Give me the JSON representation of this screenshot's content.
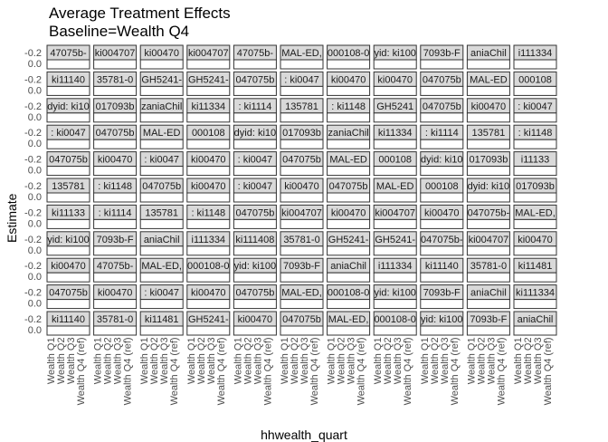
{
  "chart_data": {
    "type": "bar",
    "title_line1": "Average Treatment Effects",
    "title_line2": "Baseline=Wealth Q4",
    "xlabel": "hhwealth_quart",
    "ylabel": "Estimate",
    "categories": [
      "Wealth Q1",
      "Wealth Q2",
      "Wealth Q3",
      "Wealth Q4 (ref)"
    ],
    "y_tick_labels": [
      "-0.2",
      "0.0"
    ],
    "ylim": [
      -0.2,
      0.0
    ],
    "grid_rows": 11,
    "grid_cols": 12,
    "strip_labels": [
      [
        "47075b-",
        "ki004707",
        "ki00470",
        "ki004707",
        "47075b-",
        "MAL-ED,",
        "000108-0",
        "yid: ki100",
        "7093b-F",
        "aniaChil",
        "i111334"
      ],
      [
        "ki11140",
        "35781-0",
        "GH5241-",
        "GH5241-",
        "047075b",
        ": ki0047",
        "ki00470",
        "ki00470",
        "047075b",
        "MAL-ED",
        "000108"
      ],
      [
        "dyid: ki10",
        "017093b",
        "zaniaChil",
        "ki11334",
        ": ki1114",
        "135781",
        ": ki1148",
        "GH5241",
        "047075b",
        "ki00470",
        ": ki0047"
      ],
      [
        ": ki0047",
        "047075b",
        "MAL-ED",
        "000108",
        "dyid: ki10",
        "017093b",
        "zaniaChil",
        "ki11334",
        ": ki1114",
        "135781",
        ": ki1148"
      ],
      [
        "047075b",
        "ki00470",
        ": ki0047",
        "ki00470",
        ": ki0047",
        "047075b",
        "MAL-ED",
        "000108",
        "dyid: ki10",
        "017093b",
        "i11133"
      ],
      [
        "135781",
        ": ki1148",
        "047075b",
        "ki00470",
        ": ki0047",
        "ki00470",
        "047075b",
        "MAL-ED",
        "000108",
        "dyid: ki10",
        "017093b"
      ],
      [
        "ki11133",
        ": ki1114",
        "135781",
        ": ki1148",
        "047075b",
        "ki004707",
        "ki00470",
        "ki004707",
        "ki00470",
        "047075b-",
        "MAL-ED,"
      ],
      [
        "yid: ki100",
        "7093b-F",
        "aniaChil",
        "i111334",
        "ki111408",
        "35781-0",
        "GH5241-",
        "GH5241-",
        "047075b-",
        "ki004707",
        "ki00470"
      ],
      [
        "ki00470",
        "47075b-",
        "MAL-ED,",
        "000108-0",
        "yid: ki100",
        "7093b-F",
        "aniaChil",
        "i111334",
        "ki11140",
        "35781-0",
        "ki11481"
      ],
      [
        "047075b",
        "ki00470",
        ": ki0047",
        "ki00470",
        "047075b",
        "MAL-ED,",
        "000108-0",
        "yid: ki100",
        "7093b-F",
        "aniaChil",
        "ki111334"
      ],
      [
        "ki11140",
        "35781-0",
        "ki11481",
        "GH5241-",
        "ki00470",
        "047075b",
        "MAL-ED,",
        "000108-0",
        "yid: ki100",
        "7093b-F",
        "aniaChil"
      ]
    ]
  }
}
